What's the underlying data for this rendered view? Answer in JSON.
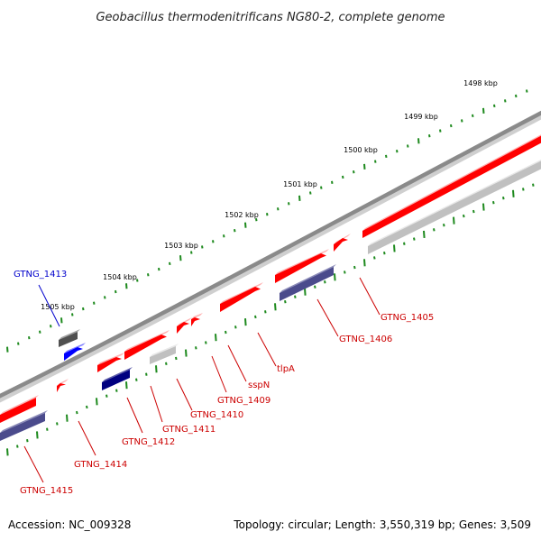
{
  "title": "Geobacillus thermodenitrificans NG80-2, complete genome",
  "footer": {
    "accession": "Accession: NC_009328",
    "summary": "Topology: circular; Length: 3,550,319 bp; Genes: 3,509"
  },
  "colors": {
    "backbone": "#808080",
    "tick": "#1e8a1e",
    "forward_gene": "#ff0000",
    "reverse_gene": "#c0c0c0",
    "label_red": "#cc0000",
    "label_blue": "#0000cc",
    "navy_gene": "#000080",
    "slate_gene": "#4b4b8c",
    "blue_gene": "#0000ff",
    "dark_gene": "#505050"
  },
  "ruler": [
    {
      "label": "1498 kbp",
      "kbp": 1498
    },
    {
      "label": "1499 kbp",
      "kbp": 1499
    },
    {
      "label": "1500 kbp",
      "kbp": 1500
    },
    {
      "label": "1501 kbp",
      "kbp": 1501
    },
    {
      "label": "1502 kbp",
      "kbp": 1502
    },
    {
      "label": "1503 kbp",
      "kbp": 1503
    },
    {
      "label": "1504 kbp",
      "kbp": 1504
    },
    {
      "label": "1505 kbp",
      "kbp": 1505
    }
  ],
  "genes": [
    {
      "label": "GTNG_1405",
      "label_color": "red"
    },
    {
      "label": "GTNG_1406",
      "label_color": "red"
    },
    {
      "label": "tlpA",
      "label_color": "red"
    },
    {
      "label": "sspN",
      "label_color": "red"
    },
    {
      "label": "GTNG_1409",
      "label_color": "red"
    },
    {
      "label": "GTNG_1410",
      "label_color": "red"
    },
    {
      "label": "GTNG_1411",
      "label_color": "red"
    },
    {
      "label": "GTNG_1412",
      "label_color": "red"
    },
    {
      "label": "GTNG_1413",
      "label_color": "blue"
    },
    {
      "label": "GTNG_1414",
      "label_color": "red"
    },
    {
      "label": "GTNG_1415",
      "label_color": "red"
    }
  ]
}
